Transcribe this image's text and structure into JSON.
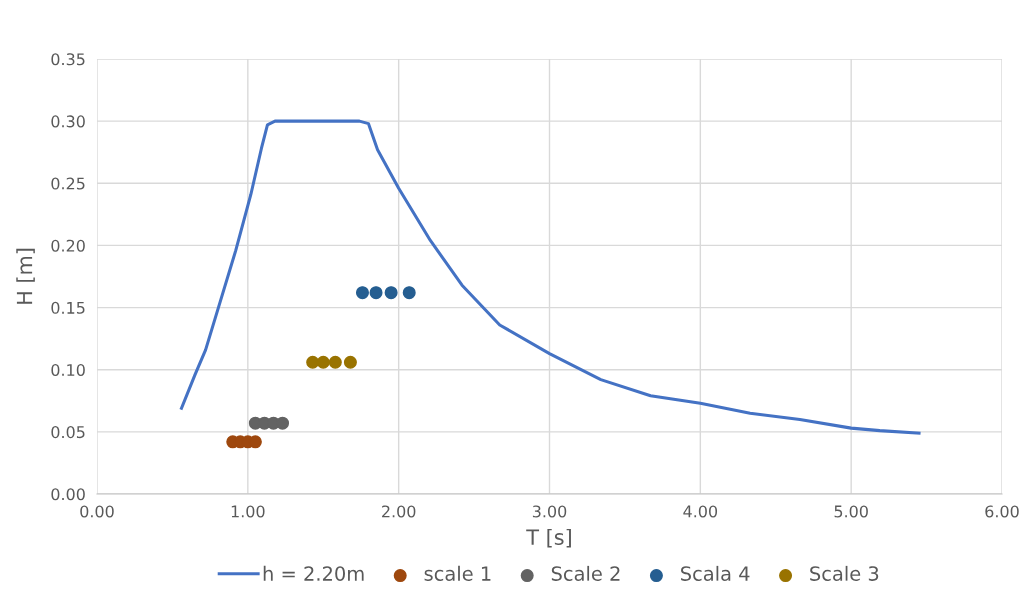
{
  "chart_data": {
    "type": "scatter",
    "xlabel": "T [s]",
    "ylabel": "H [m]",
    "xlim": [
      0,
      6
    ],
    "xticks": [
      {
        "value": 0,
        "label": "0.00"
      },
      {
        "value": 1,
        "label": "1.00"
      },
      {
        "value": 2,
        "label": "2.00"
      },
      {
        "value": 3,
        "label": "3.00"
      },
      {
        "value": 4,
        "label": "4.00"
      },
      {
        "value": 5,
        "label": "5.00"
      },
      {
        "value": 6,
        "label": "6.00"
      }
    ],
    "ylim": [
      0,
      0.35
    ],
    "yticks": [
      {
        "value": 0,
        "label": "0.00"
      },
      {
        "value": 0.05,
        "label": "0.05"
      },
      {
        "value": 0.1,
        "label": "0.10"
      },
      {
        "value": 0.15,
        "label": "0.15"
      },
      {
        "value": 0.2,
        "label": "0.20"
      },
      {
        "value": 0.25,
        "label": "0.25"
      },
      {
        "value": 0.3,
        "label": "0.30"
      },
      {
        "value": 0.35,
        "label": "0.35"
      }
    ],
    "grid": true,
    "legend": "bottom",
    "series": [
      {
        "name": "h = 2.20m",
        "type": "line",
        "marker": "none",
        "line_style": "solid",
        "color": "#4472c4",
        "x": [
          0.56,
          0.65,
          0.72,
          0.82,
          0.92,
          1.02,
          1.09,
          1.13,
          1.18,
          1.35,
          1.74,
          1.8,
          1.86,
          2.0,
          2.21,
          2.42,
          2.67,
          3.0,
          3.34,
          3.67,
          4.0,
          4.33,
          4.66,
          5.0,
          5.19,
          5.45
        ],
        "values": [
          0.069,
          0.096,
          0.116,
          0.156,
          0.196,
          0.241,
          0.278,
          0.297,
          0.3,
          0.3,
          0.3,
          0.298,
          0.277,
          0.246,
          0.204,
          0.168,
          0.136,
          0.113,
          0.092,
          0.079,
          0.073,
          0.065,
          0.06,
          0.053,
          0.051,
          0.049
        ]
      },
      {
        "name": "scale 1",
        "marker": "circle",
        "color": "#9e480e",
        "x": [
          0.9,
          0.95,
          1.0,
          1.05
        ],
        "values": [
          0.042,
          0.042,
          0.042,
          0.042
        ]
      },
      {
        "name": "Scale 2",
        "marker": "circle",
        "color": "#636363",
        "x": [
          1.05,
          1.11,
          1.17,
          1.23
        ],
        "values": [
          0.057,
          0.057,
          0.057,
          0.057
        ]
      },
      {
        "name": "Scala 4",
        "marker": "circle",
        "color": "#255e91",
        "x": [
          1.76,
          1.85,
          1.95,
          2.07
        ],
        "values": [
          0.162,
          0.162,
          0.162,
          0.162
        ]
      },
      {
        "name": "Scale 3",
        "marker": "circle",
        "color": "#997300",
        "x": [
          1.43,
          1.5,
          1.58,
          1.68
        ],
        "values": [
          0.106,
          0.106,
          0.106,
          0.106
        ]
      }
    ]
  }
}
